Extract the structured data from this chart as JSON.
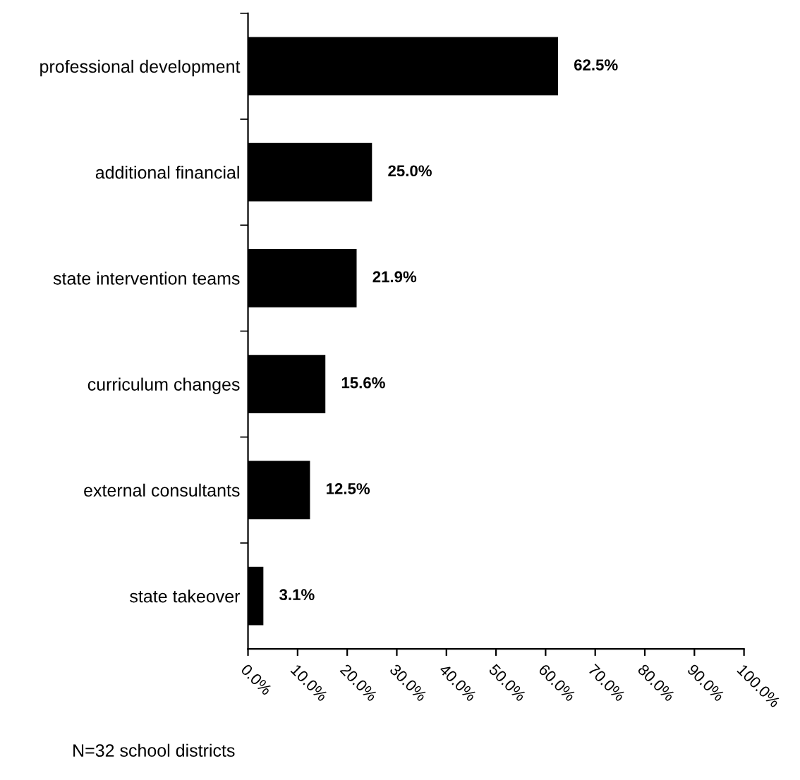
{
  "chart_data": {
    "type": "bar",
    "orientation": "horizontal",
    "categories": [
      "professional development",
      "additional financial",
      "state intervention teams",
      "curriculum changes",
      "external consultants",
      "state takeover"
    ],
    "values": [
      62.5,
      25.0,
      21.9,
      15.6,
      12.5,
      3.1
    ],
    "value_labels": [
      "62.5%",
      "25.0%",
      "21.9%",
      "15.6%",
      "12.5%",
      "3.1%"
    ],
    "color": "#000000",
    "xlim": [
      0,
      100
    ],
    "xticks": [
      {
        "value": 0,
        "label": "0.0%"
      },
      {
        "value": 10,
        "label": "10.0%"
      },
      {
        "value": 20,
        "label": "20.0%"
      },
      {
        "value": 30,
        "label": "30.0%"
      },
      {
        "value": 40,
        "label": "40.0%"
      },
      {
        "value": 50,
        "label": "50.0%"
      },
      {
        "value": 60,
        "label": "60.0%"
      },
      {
        "value": 70,
        "label": "70.0%"
      },
      {
        "value": 80,
        "label": "80.0%"
      },
      {
        "value": 90,
        "label": "90.0%"
      },
      {
        "value": 100,
        "label": "100.0%"
      }
    ],
    "grid": false,
    "annotations": [
      "N=32 school districts"
    ]
  }
}
